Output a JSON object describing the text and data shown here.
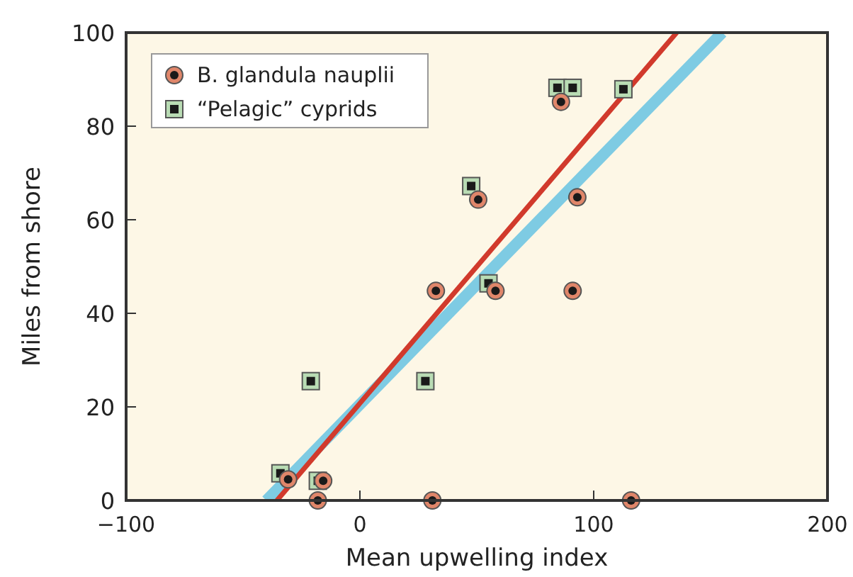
{
  "chart_data": {
    "type": "scatter",
    "xlabel": "Mean upwelling index",
    "ylabel": "Miles from shore",
    "xlim": [
      -100,
      200
    ],
    "xticks": [
      {
        "value": -100,
        "label": "−100"
      },
      0,
      100,
      200
    ],
    "ylim": [
      0,
      100
    ],
    "yticks": [
      0,
      20,
      40,
      60,
      80,
      100
    ],
    "grid": false,
    "legend": "top left",
    "series": [
      {
        "name": "B. glandula nauplii",
        "marker": "circle",
        "color": "#e0866a",
        "x": [
          -30.7,
          -15.7,
          -18,
          31,
          32.5,
          50.6,
          86,
          58,
          93,
          91,
          116
        ],
        "values": [
          4.5,
          4.2,
          0,
          0,
          44.8,
          64.3,
          85.2,
          44.8,
          64.8,
          44.8,
          0
        ]
      },
      {
        "name": "“Pelagic” cyprids",
        "marker": "square",
        "color": "#b9dcb4",
        "x": [
          -34,
          -18,
          -21,
          28,
          47.6,
          84.5,
          91,
          112.7,
          55
        ],
        "values": [
          5.8,
          4.2,
          25.5,
          25.5,
          67.2,
          88.2,
          88.2,
          87.9,
          46.4
        ]
      },
      {
        "type": "line",
        "color": "#7ecbe3",
        "line_style": "solid",
        "x": [
          -40,
          155
        ],
        "values": [
          0,
          100
        ]
      },
      {
        "type": "line",
        "color": "#d13a2c",
        "line_style": "solid",
        "x": [
          -35.5,
          135.5
        ],
        "values": [
          0,
          100
        ]
      }
    ]
  }
}
